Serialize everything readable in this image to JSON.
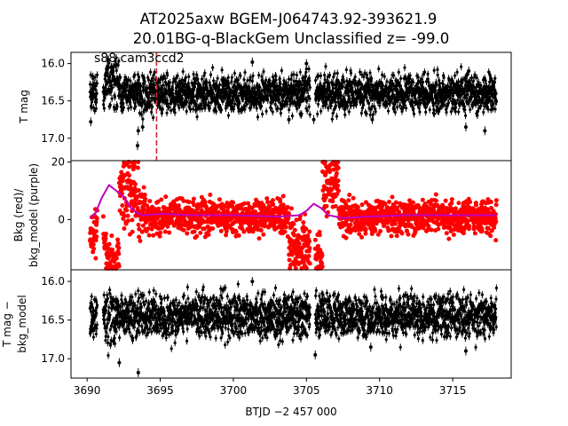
{
  "figure": {
    "title_line1": "AT2025axw  BGEM-J064743.92-393621.9",
    "title_line2": "20.01BG-q-BlackGem Unclassified z= -99.0",
    "xlabel": "BTJD −2 457 000",
    "panel_annotation": "s88 cam3ccd2"
  },
  "chart_data": [
    {
      "type": "scatter",
      "name": "top-panel",
      "ylabel": "T mag",
      "y_inverted": true,
      "xlim": [
        3688.9,
        3719.0
      ],
      "ylim": [
        17.3,
        15.85
      ],
      "yticks": [
        16.0,
        16.5,
        17.0
      ],
      "ytick_labels": [
        "16.0",
        "16.5",
        "17.0"
      ],
      "marker_line_x": 3694.75,
      "marker_line_color": "#d62728",
      "point_color": "#000000",
      "band_center": 16.4,
      "band_halfwidth": 0.22,
      "outliers": [
        [
          3690.25,
          16.78
        ],
        [
          3693.5,
          16.9
        ],
        [
          3693.8,
          16.85
        ],
        [
          3692.0,
          16.6
        ],
        [
          3703.8,
          16.75
        ],
        [
          3705.5,
          16.75
        ],
        [
          3709.5,
          16.75
        ],
        [
          3715.9,
          16.85
        ],
        [
          3717.2,
          16.9
        ],
        [
          3701.3,
          15.98
        ],
        [
          3693.45,
          17.1
        ],
        [
          3691.45,
          15.95
        ],
        [
          3705.0,
          16.0
        ],
        [
          3716.1,
          16.1
        ]
      ]
    },
    {
      "type": "scatter",
      "name": "middle-panel",
      "ylabel_line1": "Bkg (red)/",
      "ylabel_line2": "bkg_model (purple)",
      "xlim": [
        3688.9,
        3719.0
      ],
      "ylim": [
        -17.5,
        20.5
      ],
      "yticks": [
        0,
        20
      ],
      "ytick_labels": [
        "0",
        "20"
      ],
      "bkg_color": "#ff0000",
      "model_color": "#bf00bf",
      "model_x": [
        3690.2,
        3690.6,
        3691.0,
        3691.5,
        3692.0,
        3692.5,
        3693.0,
        3693.5,
        3694.0,
        3695.0,
        3697.0,
        3700.0,
        3703.0,
        3704.5,
        3705.0,
        3705.5,
        3706.0,
        3706.5,
        3707.5,
        3709.0,
        3712.0,
        3715.0,
        3718.0
      ],
      "model_y": [
        0.5,
        2.5,
        7.5,
        12.0,
        10.0,
        8.0,
        4.0,
        2.0,
        1.5,
        2.0,
        1.5,
        1.5,
        1.0,
        1.5,
        3.0,
        5.5,
        4.0,
        1.5,
        0.5,
        1.0,
        1.5,
        1.5,
        1.5
      ]
    },
    {
      "type": "scatter",
      "name": "bottom-panel",
      "ylabel_line1": "T mag −",
      "ylabel_line2": "bkg_model",
      "y_inverted": true,
      "xlim": [
        3688.9,
        3719.0
      ],
      "ylim": [
        17.25,
        15.85
      ],
      "yticks": [
        16.0,
        16.5,
        17.0
      ],
      "ytick_labels": [
        "16.0",
        "16.5",
        "17.0"
      ],
      "xticks": [
        3690,
        3695,
        3700,
        3705,
        3710,
        3715
      ],
      "xtick_labels": [
        "3690",
        "3695",
        "3700",
        "3705",
        "3710",
        "3715"
      ],
      "point_color": "#000000",
      "band_center": 16.45,
      "band_halfwidth": 0.25,
      "outliers": [
        [
          3693.5,
          17.18
        ],
        [
          3692.2,
          17.05
        ],
        [
          3705.6,
          16.95
        ],
        [
          3701.3,
          16.0
        ],
        [
          3715.9,
          16.9
        ],
        [
          3690.25,
          16.65
        ],
        [
          3709.4,
          16.85
        ]
      ]
    }
  ]
}
